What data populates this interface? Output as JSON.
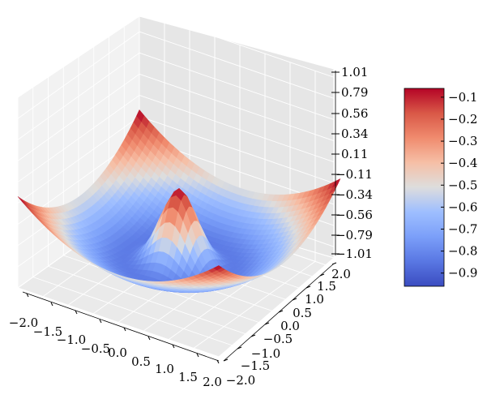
{
  "chart_data": {
    "type": "surface3d",
    "title": "",
    "xlabel": "",
    "ylabel": "",
    "zlabel": "",
    "colormap": "coolwarm",
    "x_range": [
      -2.0,
      2.0
    ],
    "y_range": [
      -2.0,
      2.0
    ],
    "z_range": [
      -1.01,
      1.01
    ],
    "x_ticks": [
      "−2.0",
      "−1.5",
      "−1.0",
      "−0.5",
      "0.0",
      "0.5",
      "1.0",
      "1.5",
      "2.0"
    ],
    "y_ticks": [
      "−2.0",
      "−1.5",
      "−1.0",
      "−0.5",
      "0.0",
      "0.5",
      "1.0",
      "1.5",
      "2.0"
    ],
    "z_ticks": [
      "−1.01",
      "−0.79",
      "−0.56",
      "−0.34",
      "−0.11",
      "0.11",
      "0.34",
      "0.56",
      "0.79",
      "1.01"
    ],
    "colorbar_ticks": [
      "−0.9",
      "−0.8",
      "−0.7",
      "−0.6",
      "−0.5",
      "−0.4",
      "−0.3",
      "−0.2",
      "−0.1"
    ],
    "colorbar_range": [
      -0.96,
      -0.06
    ],
    "legend_placement": "right",
    "grid": true
  }
}
